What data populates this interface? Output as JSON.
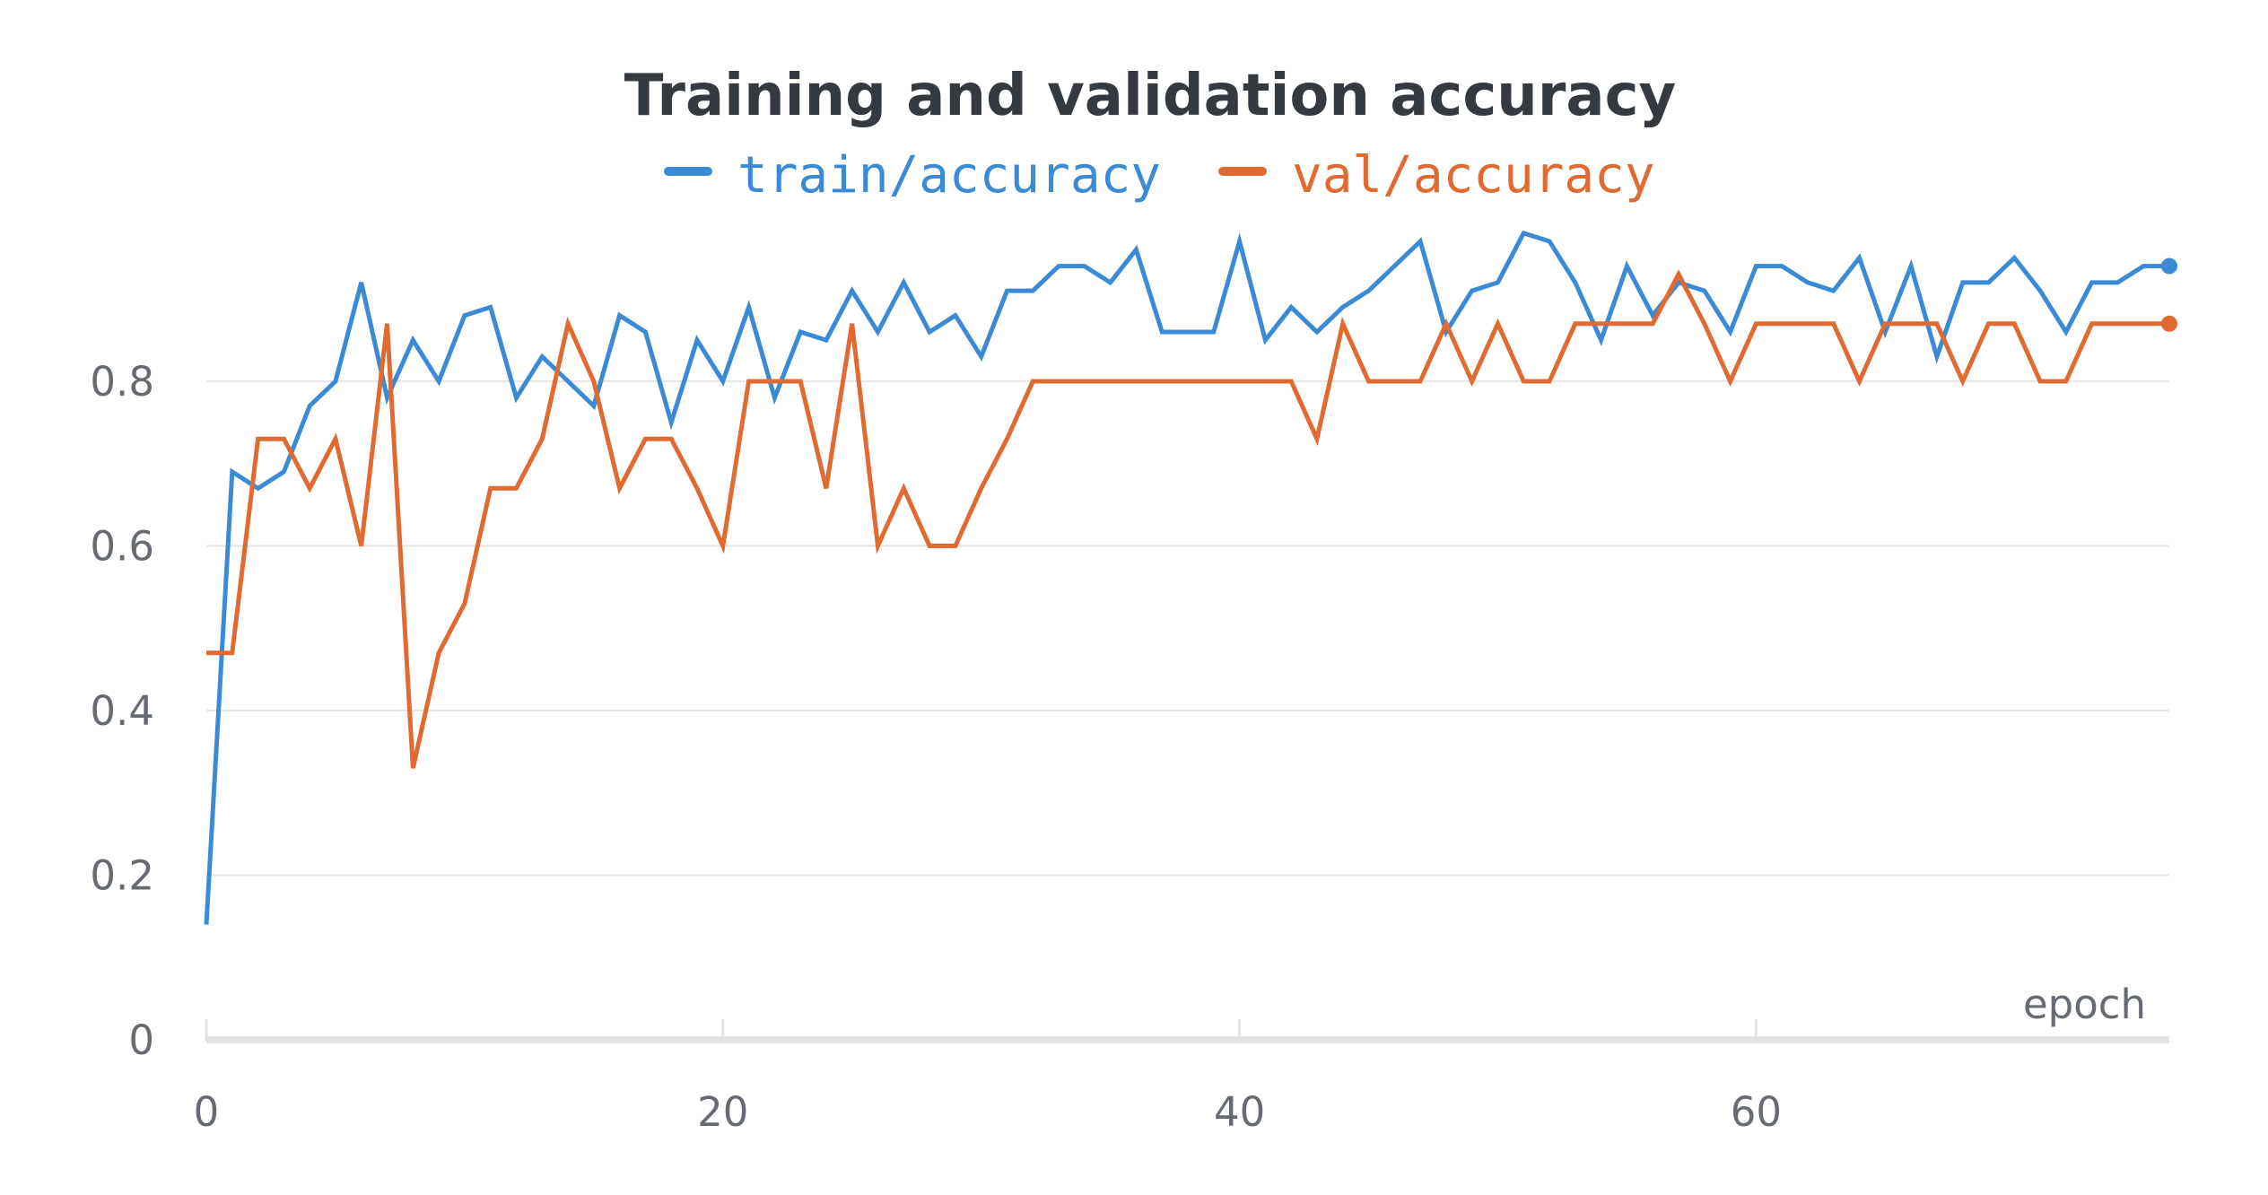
{
  "chart_data": {
    "type": "line",
    "title": "Training and validation accuracy",
    "xlabel": "epoch",
    "ylabel": "",
    "xlim": [
      0,
      76
    ],
    "ylim": [
      0,
      1
    ],
    "x_ticks": [
      0,
      20,
      40,
      60
    ],
    "x_tick_labels": [
      "0",
      "20",
      "40",
      "60"
    ],
    "y_ticks": [
      0,
      0.2,
      0.4,
      0.6,
      0.8
    ],
    "y_tick_labels": [
      "0",
      "0.2",
      "0.4",
      "0.6",
      "0.8"
    ],
    "grid": "horizontal",
    "legend_position": "top-center",
    "x": [
      0,
      1,
      2,
      3,
      4,
      5,
      6,
      7,
      8,
      9,
      10,
      11,
      12,
      13,
      14,
      15,
      16,
      17,
      18,
      19,
      20,
      21,
      22,
      23,
      24,
      25,
      26,
      27,
      28,
      29,
      30,
      31,
      32,
      33,
      34,
      35,
      36,
      37,
      38,
      39,
      40,
      41,
      42,
      43,
      44,
      45,
      46,
      47,
      48,
      49,
      50,
      51,
      52,
      53,
      54,
      55,
      56,
      57,
      58,
      59,
      60,
      61,
      62,
      63,
      64,
      65,
      66,
      67,
      68,
      69,
      70,
      71,
      72,
      73,
      74,
      75,
      76
    ],
    "series": [
      {
        "name": "train/accuracy",
        "color": "#3a8ad6",
        "end_marker": true,
        "values": [
          0.14,
          0.69,
          0.67,
          0.69,
          0.77,
          0.8,
          0.92,
          0.78,
          0.85,
          0.8,
          0.88,
          0.89,
          0.78,
          0.83,
          0.8,
          0.77,
          0.88,
          0.86,
          0.75,
          0.85,
          0.8,
          0.89,
          0.78,
          0.86,
          0.85,
          0.91,
          0.86,
          0.92,
          0.86,
          0.88,
          0.83,
          0.91,
          0.91,
          0.94,
          0.94,
          0.92,
          0.96,
          0.86,
          0.86,
          0.86,
          0.97,
          0.85,
          0.89,
          0.86,
          0.89,
          0.91,
          0.94,
          0.97,
          0.86,
          0.91,
          0.92,
          0.98,
          0.97,
          0.92,
          0.85,
          0.94,
          0.88,
          0.92,
          0.91,
          0.86,
          0.94,
          0.94,
          0.92,
          0.91,
          0.95,
          0.86,
          0.94,
          0.83,
          0.92,
          0.92,
          0.95,
          0.91,
          0.86,
          0.92,
          0.92,
          0.94,
          0.94
        ]
      },
      {
        "name": "val/accuracy",
        "color": "#e06a30",
        "end_marker": true,
        "values": [
          0.47,
          0.47,
          0.73,
          0.73,
          0.67,
          0.73,
          0.6,
          0.87,
          0.33,
          0.47,
          0.53,
          0.67,
          0.67,
          0.73,
          0.87,
          0.8,
          0.67,
          0.73,
          0.73,
          0.67,
          0.6,
          0.8,
          0.8,
          0.8,
          0.67,
          0.87,
          0.6,
          0.67,
          0.6,
          0.6,
          0.67,
          0.73,
          0.8,
          0.8,
          0.8,
          0.8,
          0.8,
          0.8,
          0.8,
          0.8,
          0.8,
          0.8,
          0.8,
          0.73,
          0.87,
          0.8,
          0.8,
          0.8,
          0.87,
          0.8,
          0.87,
          0.8,
          0.8,
          0.87,
          0.87,
          0.87,
          0.87,
          0.93,
          0.87,
          0.8,
          0.87,
          0.87,
          0.87,
          0.87,
          0.8,
          0.87,
          0.87,
          0.87,
          0.8,
          0.87,
          0.87,
          0.8,
          0.8,
          0.87,
          0.87,
          0.87,
          0.87
        ]
      }
    ]
  }
}
